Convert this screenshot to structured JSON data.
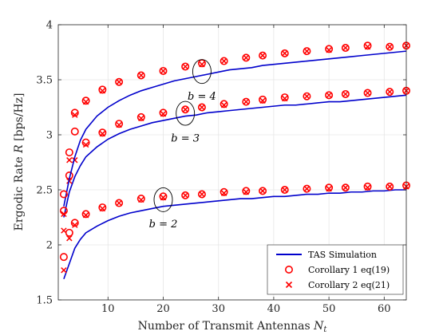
{
  "chart_data": {
    "type": "line",
    "xlabel_text": "Number of Transmit Antennas",
    "xlabel_var": "N",
    "xlabel_sub": "t",
    "ylabel_text": "Ergodic Rate",
    "ylabel_var": "R",
    "ylabel_unit": "[bps/Hz]",
    "xlim": [
      1,
      64
    ],
    "ylim": [
      1.5,
      4
    ],
    "xticks": [
      10,
      20,
      30,
      40,
      50,
      60
    ],
    "yticks": [
      1.5,
      2,
      2.5,
      3,
      3.5,
      4
    ],
    "grid": true,
    "legend_position": "bottom-right",
    "legend": [
      {
        "label": "TAS Simulation",
        "marker": "line",
        "color": "#0000cc"
      },
      {
        "label": "Corollary 1 eq(19)",
        "marker": "circle",
        "color": "#ff0000"
      },
      {
        "label": "Corollary 2 eq(21)",
        "marker": "cross",
        "color": "#ff0000"
      }
    ],
    "annotations": [
      {
        "text": "b = 2",
        "ellipse_center": [
          20,
          2.41
        ],
        "label_at": [
          20,
          2.16
        ]
      },
      {
        "text": "b = 3",
        "ellipse_center": [
          24,
          3.195
        ],
        "label_at": [
          24,
          2.94
        ]
      },
      {
        "text": "b = 4",
        "ellipse_center": [
          27,
          3.575
        ],
        "label_at": [
          27,
          3.32
        ]
      }
    ],
    "line_x": [
      2,
      3,
      4,
      5,
      6,
      8,
      10,
      12,
      14,
      16,
      18,
      20,
      22,
      24,
      26,
      28,
      30,
      32,
      34,
      36,
      38,
      40,
      42,
      44,
      46,
      48,
      50,
      52,
      54,
      56,
      58,
      60,
      62,
      64
    ],
    "marker_x": [
      2,
      3,
      4,
      6,
      9,
      12,
      16,
      20,
      24,
      27,
      31,
      35,
      38,
      42,
      46,
      50,
      53,
      57,
      61,
      64
    ],
    "series": [
      {
        "b": 2,
        "tas": [
          1.69,
          1.83,
          1.97,
          2.05,
          2.11,
          2.17,
          2.22,
          2.26,
          2.29,
          2.31,
          2.33,
          2.35,
          2.36,
          2.37,
          2.38,
          2.39,
          2.4,
          2.41,
          2.42,
          2.42,
          2.43,
          2.44,
          2.44,
          2.45,
          2.46,
          2.46,
          2.47,
          2.47,
          2.48,
          2.48,
          2.49,
          2.49,
          2.5,
          2.5
        ],
        "cor1": [
          1.89,
          2.11,
          2.2,
          2.28,
          2.34,
          2.38,
          2.42,
          2.44,
          2.45,
          2.46,
          2.48,
          2.49,
          2.49,
          2.5,
          2.51,
          2.52,
          2.52,
          2.53,
          2.53,
          2.54
        ],
        "cor2": [
          1.77,
          2.06,
          2.18,
          2.27,
          2.33,
          2.38,
          2.41,
          2.43,
          2.45,
          2.46,
          2.47,
          2.48,
          2.49,
          2.5,
          2.51,
          2.51,
          2.52,
          2.52,
          2.53,
          2.53
        ]
      },
      {
        "b": 3,
        "tas": [
          2.25,
          2.48,
          2.62,
          2.72,
          2.8,
          2.89,
          2.96,
          3.01,
          3.05,
          3.08,
          3.11,
          3.13,
          3.15,
          3.17,
          3.18,
          3.2,
          3.21,
          3.22,
          3.23,
          3.24,
          3.25,
          3.26,
          3.27,
          3.27,
          3.28,
          3.29,
          3.3,
          3.3,
          3.31,
          3.32,
          3.33,
          3.34,
          3.35,
          3.36
        ],
        "cor1": [
          2.31,
          2.63,
          3.03,
          2.93,
          3.02,
          3.1,
          3.16,
          3.2,
          3.23,
          3.25,
          3.28,
          3.3,
          3.32,
          3.34,
          3.35,
          3.36,
          3.37,
          3.38,
          3.39,
          3.4
        ],
        "cor2": [
          2.13,
          2.58,
          2.77,
          2.91,
          3.01,
          3.09,
          3.15,
          3.19,
          3.23,
          3.25,
          3.27,
          3.3,
          3.31,
          3.33,
          3.35,
          3.36,
          3.37,
          3.38,
          3.39,
          3.4
        ]
      },
      {
        "b": 4,
        "tas": [
          2.35,
          2.6,
          2.8,
          2.95,
          3.05,
          3.17,
          3.25,
          3.31,
          3.36,
          3.4,
          3.43,
          3.46,
          3.49,
          3.51,
          3.53,
          3.55,
          3.57,
          3.59,
          3.6,
          3.61,
          3.63,
          3.64,
          3.65,
          3.66,
          3.67,
          3.68,
          3.69,
          3.7,
          3.71,
          3.72,
          3.73,
          3.74,
          3.75,
          3.76
        ],
        "cor1": [
          2.46,
          2.84,
          3.2,
          3.31,
          3.41,
          3.48,
          3.54,
          3.58,
          3.62,
          3.65,
          3.67,
          3.7,
          3.72,
          3.74,
          3.76,
          3.78,
          3.79,
          3.81,
          3.8,
          3.81
        ],
        "cor2": [
          2.28,
          2.77,
          3.18,
          3.3,
          3.4,
          3.48,
          3.54,
          3.58,
          3.62,
          3.64,
          3.67,
          3.7,
          3.72,
          3.74,
          3.76,
          3.77,
          3.79,
          3.8,
          3.8,
          3.81
        ]
      }
    ]
  }
}
